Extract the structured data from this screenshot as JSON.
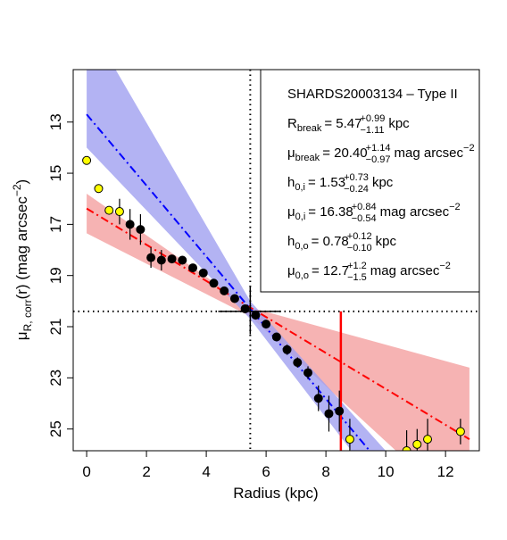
{
  "chart_data": {
    "type": "scatter",
    "x_label": "Radius (kpc)",
    "y_label": {
      "symbol": "μ",
      "sub": "R, corr",
      "text": "(r) (mag arcsec",
      "sup": "−2",
      "end": ")"
    },
    "xlim": [
      -0.45,
      13.13
    ],
    "ylim": [
      25.85,
      10.95
    ],
    "xticks": [
      0,
      2,
      4,
      6,
      8,
      10,
      12
    ],
    "yticks": [
      13,
      15,
      17,
      19,
      21,
      23,
      25
    ],
    "series": [
      {
        "color": "#000000",
        "x": [
          1.45,
          1.8,
          2.15,
          2.5,
          2.85,
          3.2,
          3.55,
          3.9,
          4.25,
          4.6,
          4.95,
          5.3,
          5.65,
          6.0,
          6.35,
          6.7,
          7.05,
          7.4,
          7.75,
          8.1,
          8.45
        ],
        "values": [
          17.0,
          17.2,
          18.3,
          18.4,
          18.35,
          18.4,
          18.7,
          18.9,
          19.3,
          19.6,
          19.9,
          20.3,
          20.55,
          20.9,
          21.4,
          21.9,
          22.4,
          22.8,
          23.8,
          24.4,
          24.3
        ],
        "errors": [
          0.6,
          0.6,
          0.4,
          0.4,
          0.15,
          0.15,
          0.15,
          0.15,
          0.15,
          0.15,
          0.15,
          0.15,
          0.15,
          0.15,
          0.15,
          0.2,
          0.2,
          0.25,
          0.5,
          0.7,
          0.8
        ]
      },
      {
        "color": "#ffff00",
        "x": [
          0.0,
          0.4,
          0.75,
          1.1,
          8.8,
          10.7,
          11.05,
          11.4,
          12.5
        ],
        "values": [
          14.5,
          15.6,
          16.45,
          16.5,
          25.4,
          25.85,
          25.6,
          25.4,
          25.1
        ],
        "errors": [
          0.05,
          0.1,
          0.15,
          0.5,
          0.8,
          0.8,
          0.6,
          0.8,
          0.5
        ]
      }
    ],
    "fits": [
      {
        "color": "#ff0000",
        "band_color": "#f4a0a0",
        "x": [
          0.0,
          5.47,
          12.8
        ],
        "values": [
          16.38,
          20.25,
          25.4
        ],
        "band_low": [
          15.8,
          20.25,
          22.6
        ],
        "band_high": [
          17.35,
          20.6,
          28.5
        ]
      },
      {
        "color": "#0000ff",
        "band_color": "#a0a0f0",
        "x": [
          0.0,
          5.47,
          10.0
        ],
        "values": [
          12.7,
          20.3,
          26.6
        ],
        "band_low": [
          9.0,
          20.0,
          25.85
        ],
        "band_high": [
          14.0,
          20.7,
          27.6
        ]
      }
    ],
    "break": {
      "x": 5.47,
      "y": 20.4,
      "x_err": [
        4.4,
        6.5
      ],
      "y_err": [
        19.4,
        21.3
      ]
    },
    "marker_line": {
      "x": 8.5,
      "color": "#ff0000"
    },
    "annotation": {
      "title": "SHARDS20003134  –  Type II",
      "lines": [
        {
          "symbol": "R",
          "sub": "break",
          "value": "= 5.47",
          "sup": "+0.99",
          "low": "−1.11",
          "unit": "kpc"
        },
        {
          "symbol": "μ",
          "sub": "break",
          "value": "= 20.40",
          "sup": "+1.14",
          "low": "−0.97",
          "unit": "mag arcsec",
          "unit_sup": "−2"
        },
        {
          "symbol": "h",
          "sub": "0,i",
          "value": "= 1.53",
          "sup": "+0.73",
          "low": "−0.24",
          "unit": "kpc"
        },
        {
          "symbol": "μ",
          "sub": "0,i",
          "value": "= 16.38",
          "sup": "+0.84",
          "low": "−0.54",
          "unit": "mag arcsec",
          "unit_sup": "−2"
        },
        {
          "symbol": "h",
          "sub": "0,o",
          "value": "= 0.78",
          "sup": "+0.12",
          "low": "−0.10",
          "unit": "kpc"
        },
        {
          "symbol": "μ",
          "sub": "0,o",
          "value": "= 12.7",
          "sup": "+1.2",
          "low": "−1.5",
          "unit": "mag arcsec",
          "unit_sup": "−2"
        }
      ]
    }
  }
}
